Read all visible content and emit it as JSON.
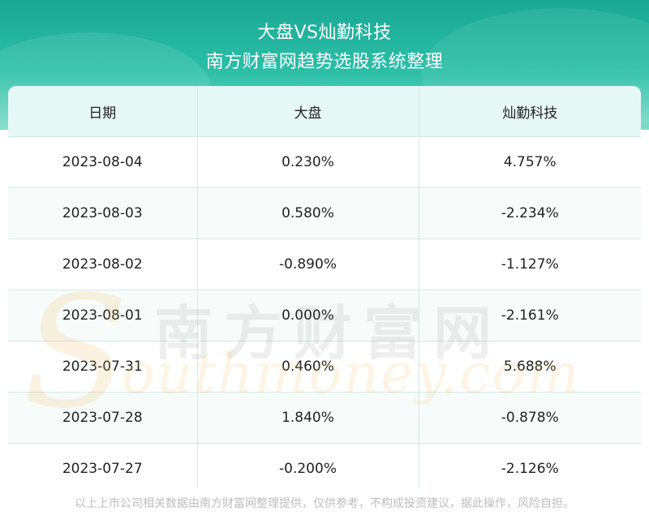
{
  "header": {
    "title": "大盘VS灿勤科技",
    "subtitle": "南方财富网趋势选股系统整理"
  },
  "table": {
    "columns": [
      "日期",
      "大盘",
      "灿勤科技"
    ],
    "rows": [
      [
        "2023-08-04",
        "0.230%",
        "4.757%"
      ],
      [
        "2023-08-03",
        "0.580%",
        "-2.234%"
      ],
      [
        "2023-08-02",
        "-0.890%",
        "-1.127%"
      ],
      [
        "2023-08-01",
        "0.000%",
        "-2.161%"
      ],
      [
        "2023-07-31",
        "0.460%",
        "5.688%"
      ],
      [
        "2023-07-28",
        "1.840%",
        "-0.878%"
      ],
      [
        "2023-07-27",
        "-0.200%",
        "-2.126%"
      ]
    ]
  },
  "watermark": {
    "cn": "南方财富网",
    "en": "Southmoney.com"
  },
  "footer": {
    "disclaimer": "以上上市公司相关数据由南方财富网整理提供，仅供参考，不构成投资建议，据此操作，风险自担。"
  },
  "colors": {
    "header_teal": "#1aa893",
    "header_row_bg": "#e6f8f5",
    "grid_line": "#cfe9e4"
  }
}
